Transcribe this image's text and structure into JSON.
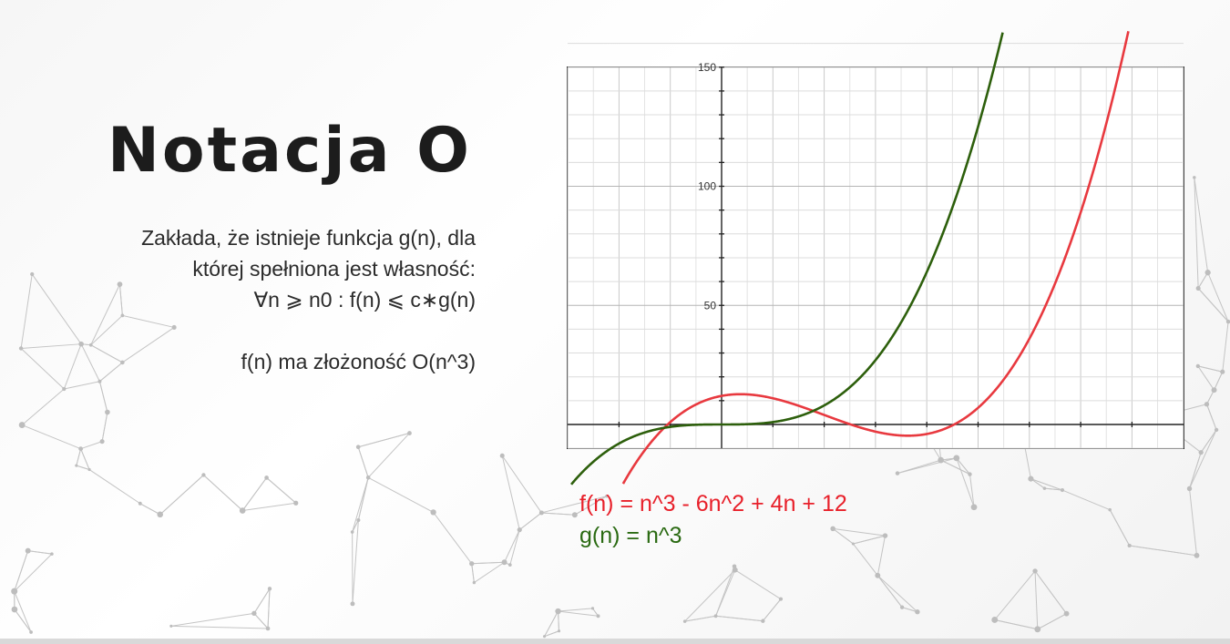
{
  "slide": {
    "title": "Notacja O",
    "description": {
      "line1": "Zakłada, że istnieje funkcja g(n), dla",
      "line2": "której spełniona jest własność:",
      "line3": "∀n ⩾ n0 : f(n) ⩽ c∗g(n)",
      "line4": "f(n) ma złożoność O(n^3)"
    },
    "formulas": {
      "f": "f(n) = n^3 - 6n^2 + 4n + 12",
      "g": "g(n) = n^3"
    }
  },
  "colors": {
    "f_series": "#e8393f",
    "g_series": "#2d5f0c",
    "title": "#1c1c1c"
  },
  "chart_data": {
    "type": "line",
    "title": "",
    "xlabel": "",
    "ylabel": "",
    "xlim": [
      -3,
      9
    ],
    "ylim": [
      -10,
      150
    ],
    "x_ticks": [
      -2,
      -1,
      0,
      1,
      2,
      3,
      4,
      5,
      6,
      7,
      8
    ],
    "y_tick_labels": [
      "50",
      "100",
      "150"
    ],
    "y_tick_values": [
      50,
      100,
      150
    ],
    "grid": true,
    "series": [
      {
        "formula": "n^3 - 6n^2 + 4n + 12",
        "color": "#e8393f"
      },
      {
        "formula": "n^3",
        "color": "#2d5f0c"
      }
    ]
  }
}
